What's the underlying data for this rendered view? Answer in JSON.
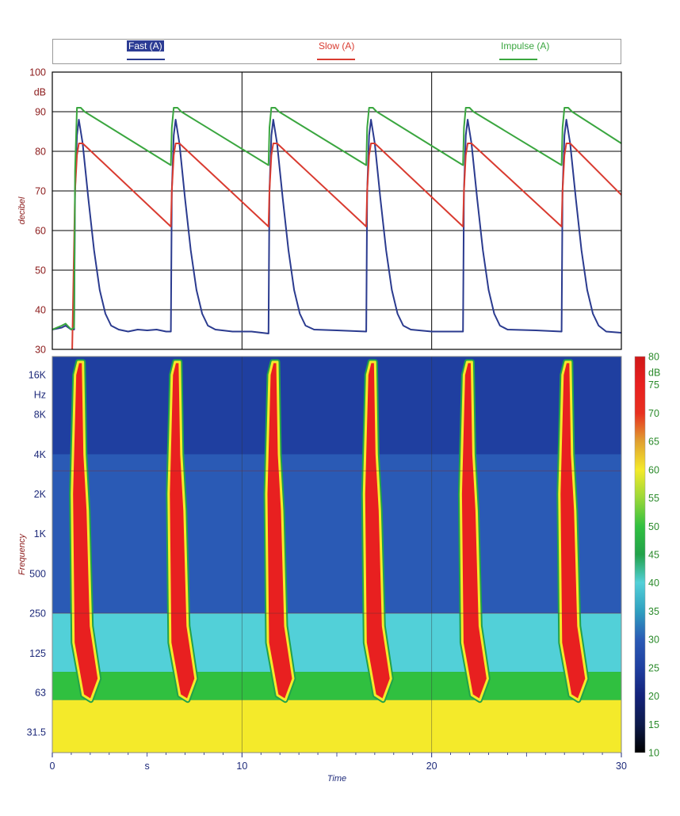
{
  "legend": {
    "items": [
      {
        "label": "Fast (A)",
        "color": "#2b3b8f",
        "highlight": "#2c3c94"
      },
      {
        "label": "Slow (A)",
        "color": "#d93b30"
      },
      {
        "label": "Impulse (A)",
        "color": "#3aa63f"
      }
    ]
  },
  "chart_data": [
    {
      "type": "line",
      "title": "",
      "xlabel": "",
      "ylabel": "decibel",
      "yunit": "dB",
      "ylim": [
        30,
        100
      ],
      "yticks": [
        30,
        40,
        50,
        60,
        70,
        80,
        90,
        100
      ],
      "xlim": [
        0,
        30
      ],
      "grid": true,
      "legend_position": "top",
      "colors": {
        "axis_text": "#8b1a1a",
        "grid": "#000000"
      },
      "impulse_times": [
        1.2,
        6.3,
        11.45,
        16.6,
        21.7,
        26.9
      ],
      "series": [
        {
          "name": "Fast (A)",
          "color": "#2b3b8f",
          "points": [
            [
              0,
              35
            ],
            [
              0.5,
              35.5
            ],
            [
              0.7,
              36
            ],
            [
              1.0,
              35
            ],
            [
              1.15,
              35
            ],
            [
              1.2,
              70
            ],
            [
              1.3,
              84
            ],
            [
              1.4,
              88
            ],
            [
              1.6,
              82
            ],
            [
              1.9,
              68
            ],
            [
              2.2,
              55
            ],
            [
              2.5,
              45
            ],
            [
              2.8,
              39
            ],
            [
              3.1,
              36
            ],
            [
              3.5,
              35
            ],
            [
              4.0,
              34.5
            ],
            [
              4.5,
              35
            ],
            [
              5.0,
              34.8
            ],
            [
              5.5,
              35
            ],
            [
              6.0,
              34.5
            ],
            [
              6.25,
              34.5
            ],
            [
              6.3,
              70
            ],
            [
              6.4,
              84
            ],
            [
              6.5,
              88
            ],
            [
              6.7,
              82
            ],
            [
              7.0,
              68
            ],
            [
              7.3,
              55
            ],
            [
              7.6,
              45
            ],
            [
              7.9,
              39
            ],
            [
              8.2,
              36
            ],
            [
              8.6,
              35
            ],
            [
              9.5,
              34.5
            ],
            [
              10.5,
              34.5
            ],
            [
              11.4,
              34
            ],
            [
              11.45,
              70
            ],
            [
              11.55,
              84
            ],
            [
              11.65,
              88
            ],
            [
              11.85,
              82
            ],
            [
              12.15,
              68
            ],
            [
              12.45,
              55
            ],
            [
              12.75,
              45
            ],
            [
              13.05,
              39
            ],
            [
              13.35,
              36
            ],
            [
              13.8,
              35
            ],
            [
              15.0,
              34.8
            ],
            [
              16.55,
              34.5
            ],
            [
              16.6,
              70
            ],
            [
              16.7,
              84
            ],
            [
              16.8,
              88
            ],
            [
              17.0,
              82
            ],
            [
              17.3,
              68
            ],
            [
              17.6,
              55
            ],
            [
              17.9,
              45
            ],
            [
              18.2,
              39
            ],
            [
              18.5,
              36
            ],
            [
              18.9,
              35
            ],
            [
              20.0,
              34.5
            ],
            [
              21.65,
              34.5
            ],
            [
              21.7,
              70
            ],
            [
              21.8,
              84
            ],
            [
              21.9,
              88
            ],
            [
              22.1,
              82
            ],
            [
              22.4,
              68
            ],
            [
              22.7,
              55
            ],
            [
              23.0,
              45
            ],
            [
              23.3,
              39
            ],
            [
              23.6,
              36
            ],
            [
              24.0,
              35
            ],
            [
              25.5,
              34.8
            ],
            [
              26.85,
              34.5
            ],
            [
              26.9,
              70
            ],
            [
              27.0,
              84
            ],
            [
              27.1,
              88
            ],
            [
              27.3,
              82
            ],
            [
              27.6,
              68
            ],
            [
              27.9,
              55
            ],
            [
              28.2,
              45
            ],
            [
              28.5,
              39
            ],
            [
              28.8,
              36
            ],
            [
              29.2,
              34.5
            ],
            [
              30,
              34.2
            ]
          ]
        },
        {
          "name": "Slow (A)",
          "color": "#d93b30",
          "points": [
            [
              1.05,
              30
            ],
            [
              1.2,
              70
            ],
            [
              1.3,
              79
            ],
            [
              1.4,
              82
            ],
            [
              1.6,
              82
            ],
            [
              6.25,
              61
            ],
            [
              6.3,
              70
            ],
            [
              6.4,
              79
            ],
            [
              6.5,
              82
            ],
            [
              6.7,
              82
            ],
            [
              11.4,
              61
            ],
            [
              11.45,
              70
            ],
            [
              11.55,
              79
            ],
            [
              11.65,
              82
            ],
            [
              11.85,
              82
            ],
            [
              16.55,
              61
            ],
            [
              16.6,
              70
            ],
            [
              16.7,
              79
            ],
            [
              16.8,
              82
            ],
            [
              17.0,
              82
            ],
            [
              21.65,
              61
            ],
            [
              21.7,
              70
            ],
            [
              21.8,
              79
            ],
            [
              21.9,
              82
            ],
            [
              22.1,
              82
            ],
            [
              26.85,
              61
            ],
            [
              26.9,
              70
            ],
            [
              27.0,
              79
            ],
            [
              27.1,
              82
            ],
            [
              27.3,
              82
            ],
            [
              30,
              69
            ]
          ]
        },
        {
          "name": "Impulse (A)",
          "color": "#3aa63f",
          "points": [
            [
              0,
              35
            ],
            [
              0.5,
              36
            ],
            [
              0.7,
              36.5
            ],
            [
              1.0,
              35
            ],
            [
              1.15,
              35.5
            ],
            [
              1.2,
              75
            ],
            [
              1.3,
              91
            ],
            [
              1.5,
              91
            ],
            [
              1.7,
              90
            ],
            [
              6.25,
              76.5
            ],
            [
              6.3,
              86
            ],
            [
              6.4,
              91
            ],
            [
              6.6,
              91
            ],
            [
              6.8,
              90
            ],
            [
              11.4,
              76.5
            ],
            [
              11.45,
              86
            ],
            [
              11.55,
              91
            ],
            [
              11.75,
              91
            ],
            [
              11.95,
              90
            ],
            [
              16.55,
              76.5
            ],
            [
              16.6,
              86
            ],
            [
              16.7,
              91
            ],
            [
              16.9,
              91
            ],
            [
              17.1,
              90
            ],
            [
              21.65,
              76.5
            ],
            [
              21.7,
              86
            ],
            [
              21.8,
              91
            ],
            [
              22.0,
              91
            ],
            [
              22.2,
              90
            ],
            [
              26.85,
              76.5
            ],
            [
              26.9,
              86
            ],
            [
              27.0,
              91
            ],
            [
              27.2,
              91
            ],
            [
              27.4,
              90
            ],
            [
              30,
              82
            ]
          ]
        }
      ]
    },
    {
      "type": "heatmap",
      "title": "",
      "xlabel": "Time",
      "ylabel": "Frequency",
      "yunit": "Hz",
      "x_unit_label": "s",
      "xlim": [
        0,
        30
      ],
      "xticks": [
        0,
        10,
        20,
        30
      ],
      "ylim_hz": [
        22,
        22000
      ],
      "yticks": [
        "16K",
        "8K",
        "4K",
        "2K",
        "1K",
        "500",
        "250",
        "125",
        "63",
        "31.5"
      ],
      "ytick_hz": [
        16000,
        8000,
        4000,
        2000,
        1000,
        500,
        250,
        125,
        63,
        31.5
      ],
      "colorbar": {
        "unit": "dB",
        "range": [
          10,
          80
        ],
        "ticks": [
          80,
          75,
          70,
          65,
          60,
          55,
          50,
          45,
          40,
          35,
          30,
          25,
          20,
          15,
          10
        ],
        "tick_color": "#2a8a2a",
        "stops": [
          [
            10,
            "#000000"
          ],
          [
            15,
            "#0d1a4a"
          ],
          [
            20,
            "#13227a"
          ],
          [
            25,
            "#1f3fa0"
          ],
          [
            30,
            "#2a5ab5"
          ],
          [
            35,
            "#2fa0c0"
          ],
          [
            40,
            "#52d0d8"
          ],
          [
            45,
            "#22a24a"
          ],
          [
            50,
            "#30c040"
          ],
          [
            55,
            "#9ad838"
          ],
          [
            60,
            "#f4ea2a"
          ],
          [
            65,
            "#e0a030"
          ],
          [
            70,
            "#e83020"
          ],
          [
            75,
            "#e82020"
          ],
          [
            80,
            "#d01818"
          ]
        ]
      },
      "impulse_times": [
        1.2,
        6.3,
        11.45,
        16.6,
        21.7,
        26.9
      ],
      "background_levels": [
        {
          "band": "4K-22K",
          "level_db": 25
        },
        {
          "band": "250-4K",
          "level_db": 28
        },
        {
          "band": "90-250",
          "level_db": 38
        },
        {
          "band": "55-90",
          "level_db": 48
        },
        {
          "band": "22-55",
          "level_db": 58
        }
      ],
      "impulse_peak_db": 80
    }
  ]
}
